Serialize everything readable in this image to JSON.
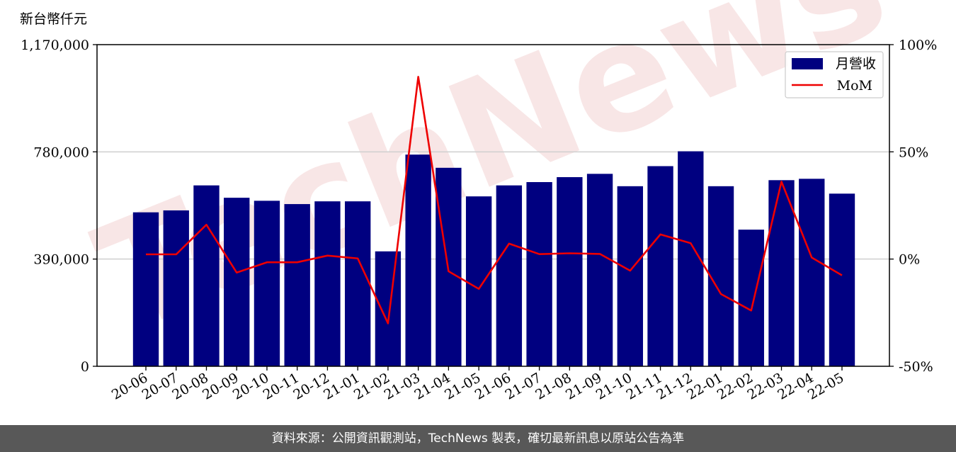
{
  "chart_data": {
    "type": "bar",
    "unit_label": "新台幣仟元",
    "categories": [
      "20-06",
      "20-07",
      "20-08",
      "20-09",
      "20-10",
      "20-11",
      "20-12",
      "21-01",
      "21-02",
      "21-03",
      "21-04",
      "21-05",
      "21-06",
      "21-07",
      "21-08",
      "21-09",
      "21-10",
      "21-11",
      "21-12",
      "22-01",
      "22-02",
      "22-03",
      "22-04",
      "22-05"
    ],
    "series": [
      {
        "name": "月營收",
        "type": "bar",
        "axis": "left",
        "color": "#000080",
        "values": [
          560000,
          567000,
          658000,
          613000,
          602000,
          590000,
          600000,
          600000,
          418000,
          770000,
          722000,
          618000,
          658000,
          670000,
          688000,
          700000,
          655000,
          728000,
          782000,
          655000,
          497000,
          677000,
          682000,
          628000
        ]
      },
      {
        "name": "MoM",
        "type": "line",
        "axis": "right",
        "color": "#ee0000",
        "values": [
          2.2,
          2.2,
          16.0,
          -6.3,
          -1.5,
          -1.5,
          1.6,
          0.3,
          -30.0,
          85.0,
          -5.7,
          -13.9,
          7.2,
          2.3,
          2.7,
          2.4,
          -5.4,
          11.5,
          7.4,
          -16.3,
          -24.0,
          36.1,
          0.7,
          -7.6
        ]
      }
    ],
    "y_left": {
      "ylim": [
        0,
        1170000
      ],
      "ticks": [
        "0",
        "390,000",
        "780,000",
        "1,170,000"
      ],
      "tick_values": [
        0,
        390000,
        780000,
        1170000
      ]
    },
    "y_right": {
      "ylim": [
        -50,
        100
      ],
      "ticks": [
        "-50%",
        "0%",
        "50%",
        "100%"
      ],
      "tick_values": [
        -50,
        0,
        50,
        100
      ]
    },
    "grid": "horizontal",
    "legend": {
      "position": "top-right",
      "entries": [
        "月營收",
        "MoM"
      ]
    }
  },
  "watermark": {
    "text": "TechNews",
    "color": "#f1c9c9"
  },
  "footer": {
    "text": "資料來源：公開資訊觀測站，TechNews 製表，確切最新訊息以原站公告為準"
  }
}
